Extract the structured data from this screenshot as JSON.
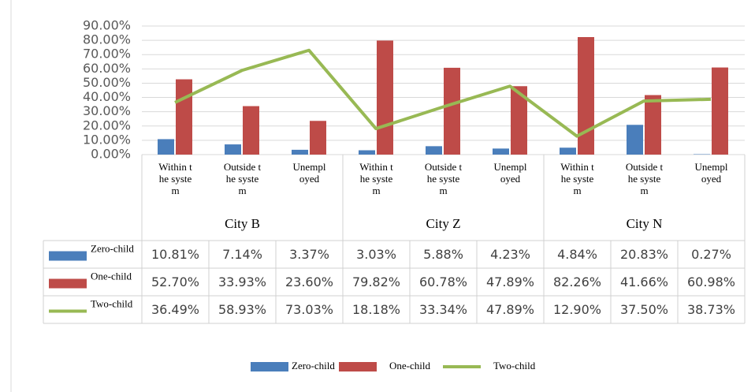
{
  "chart_data": {
    "type": "bar_line_table",
    "groups": [
      "City B",
      "City Z",
      "City N"
    ],
    "categories": [
      "Within the system",
      "Outside the system",
      "Unemployed",
      "Within the system",
      "Outside the system",
      "Unemployed",
      "Within the system",
      "Outside the system",
      "Unemployed"
    ],
    "series": [
      {
        "name": "Zero-child",
        "type": "bar",
        "color": "#4a7ebb",
        "values": [
          10.81,
          7.14,
          3.37,
          3.03,
          5.88,
          4.23,
          4.84,
          20.83,
          0.27
        ],
        "value_labels": [
          "10.81%",
          "7.14%",
          "3.37%",
          "3.03%",
          "5.88%",
          "4.23%",
          "4.84%",
          "20.83%",
          "0.27%"
        ]
      },
      {
        "name": "One-child",
        "type": "bar",
        "color": "#be4b48",
        "values": [
          52.7,
          33.93,
          23.6,
          79.82,
          60.78,
          47.89,
          82.26,
          41.66,
          60.98
        ],
        "value_labels": [
          "52.70%",
          "33.93%",
          "23.60%",
          "79.82%",
          "60.78%",
          "47.89%",
          "82.26%",
          "41.66%",
          "60.98%"
        ]
      },
      {
        "name": "Two-child",
        "type": "line",
        "color": "#98b954",
        "values": [
          36.49,
          58.93,
          73.03,
          18.18,
          33.34,
          47.89,
          12.9,
          37.5,
          38.73
        ],
        "value_labels": [
          "36.49%",
          "58.93%",
          "73.03%",
          "18.18%",
          "33.34%",
          "47.89%",
          "12.90%",
          "37.50%",
          "38.73%"
        ]
      }
    ],
    "ylim": [
      0,
      90
    ],
    "yticks": [
      {
        "value": 0,
        "label": "0.00%"
      },
      {
        "value": 10,
        "label": "10.00%"
      },
      {
        "value": 20,
        "label": "20.00%"
      },
      {
        "value": 30,
        "label": "30.00%"
      },
      {
        "value": 40,
        "label": "40.00%"
      },
      {
        "value": 50,
        "label": "50.00%"
      },
      {
        "value": 60,
        "label": "60.00%"
      },
      {
        "value": 70,
        "label": "70.00%"
      },
      {
        "value": 80,
        "label": "80.00%"
      },
      {
        "value": 90,
        "label": "90.00%"
      }
    ],
    "grid": true,
    "legend": "bottom"
  }
}
